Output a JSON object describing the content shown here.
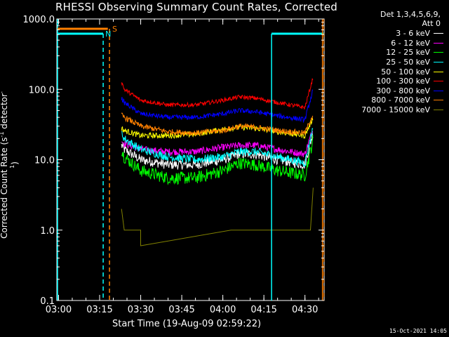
{
  "header": {
    "title": "RHESSI Observing Summary Count Rates, Corrected",
    "det_line1": "Det 1,3,4,5,6,9,",
    "det_line2": "Att 0"
  },
  "footer": {
    "xlabel": "Start Time (19-Aug-09 02:59:22)",
    "timestamp": "15-Oct-2021 14:05"
  },
  "markers": {
    "s_label": "S",
    "n_label": "N"
  },
  "colors": {
    "background": "#000000",
    "axes": "#ffffff",
    "saa_cyan": "#00ffff",
    "attenuator_orange": "#ff8000"
  },
  "chart_data": {
    "type": "line",
    "title": "RHESSI Observing Summary Count Rates, Corrected",
    "xlabel": "Start Time (19-Aug-09 02:59:22)",
    "ylabel": "Corrected Count Rate (s⁻¹ detector⁻¹)",
    "ylabel_main": "Corrected Count Rate (s",
    "ylabel_sup1": "-1",
    "ylabel_mid": " detector",
    "ylabel_sup2": "-1",
    "ylabel_end": ")",
    "yscale": "log",
    "ylim": [
      0.1,
      1000
    ],
    "xlim": [
      "02:59:22",
      "04:37:00"
    ],
    "x_ticks": [
      "03:00",
      "03:15",
      "03:30",
      "03:45",
      "04:00",
      "04:15",
      "04:30"
    ],
    "y_ticks": [
      "0.1",
      "1.0",
      "10.0",
      "100.0",
      "1000.0"
    ],
    "legend_position": "top-right, outside plot",
    "series": [
      {
        "name": "3 - 6 keV",
        "color": "#ffffff",
        "x": [
          "03:23",
          "03:24",
          "03:30",
          "03:40",
          "03:50",
          "04:00",
          "04:06",
          "04:12",
          "04:20",
          "04:30",
          "04:33"
        ],
        "values": [
          16,
          14,
          10,
          8.5,
          8.5,
          10,
          12,
          12,
          10,
          8.5,
          25
        ]
      },
      {
        "name": "6 - 12 keV",
        "color": "#ff00ff",
        "x": [
          "03:23",
          "03:24",
          "03:30",
          "03:40",
          "03:50",
          "04:00",
          "04:06",
          "04:12",
          "04:20",
          "04:30",
          "04:33"
        ],
        "values": [
          19,
          17,
          14,
          13,
          13,
          15,
          16,
          16,
          14,
          12,
          28
        ]
      },
      {
        "name": "12 - 25 keV",
        "color": "#00ff00",
        "x": [
          "03:23",
          "03:24",
          "03:30",
          "03:40",
          "03:50",
          "04:00",
          "04:06",
          "04:12",
          "04:20",
          "04:30",
          "04:33"
        ],
        "values": [
          14,
          11,
          7,
          5.5,
          5.5,
          7,
          9,
          8.5,
          7,
          6,
          20
        ]
      },
      {
        "name": "25 - 50 keV",
        "color": "#00ffff",
        "x": [
          "03:23",
          "03:24",
          "03:30",
          "03:40",
          "03:50",
          "04:00",
          "04:06",
          "04:12",
          "04:20",
          "04:30",
          "04:33"
        ],
        "values": [
          24,
          20,
          14,
          11,
          10,
          11,
          13,
          13,
          11,
          9,
          30
        ]
      },
      {
        "name": "50 - 100 keV",
        "color": "#ffff00",
        "x": [
          "03:23",
          "03:24",
          "03:30",
          "03:40",
          "03:50",
          "04:00",
          "04:06",
          "04:12",
          "04:20",
          "04:30",
          "04:33"
        ],
        "values": [
          28,
          26,
          22,
          22,
          23,
          27,
          29,
          28,
          25,
          22,
          40
        ]
      },
      {
        "name": "100 - 300 keV",
        "color": "#ff0000",
        "x": [
          "03:23",
          "03:24",
          "03:30",
          "03:40",
          "03:50",
          "04:00",
          "04:06",
          "04:12",
          "04:20",
          "04:30",
          "04:33"
        ],
        "values": [
          130,
          100,
          70,
          60,
          60,
          70,
          78,
          75,
          65,
          55,
          150
        ]
      },
      {
        "name": "300 - 800 keV",
        "color": "#0000ff",
        "x": [
          "03:23",
          "03:24",
          "03:30",
          "03:40",
          "03:50",
          "04:00",
          "04:06",
          "04:12",
          "04:20",
          "04:30",
          "04:33"
        ],
        "values": [
          75,
          65,
          45,
          40,
          40,
          45,
          50,
          48,
          42,
          37,
          100
        ]
      },
      {
        "name": "800 - 7000 keV",
        "color": "#ff8000",
        "x": [
          "03:23",
          "03:24",
          "03:30",
          "03:40",
          "03:50",
          "04:00",
          "04:06",
          "04:12",
          "04:20",
          "04:30",
          "04:33"
        ],
        "values": [
          43,
          40,
          30,
          25,
          24,
          26,
          30,
          29,
          26,
          24,
          45
        ]
      },
      {
        "name": "7000 - 15000 keV",
        "color": "#808000",
        "x": [
          "03:23",
          "03:24",
          "03:25",
          "03:25",
          "03:30",
          "03:30",
          "04:03",
          "04:12",
          "04:32",
          "04:33"
        ],
        "values": [
          2.0,
          1.0,
          1.0,
          1.0,
          1.0,
          0.6,
          1.0,
          1.0,
          1.0,
          4.0
        ]
      }
    ]
  }
}
